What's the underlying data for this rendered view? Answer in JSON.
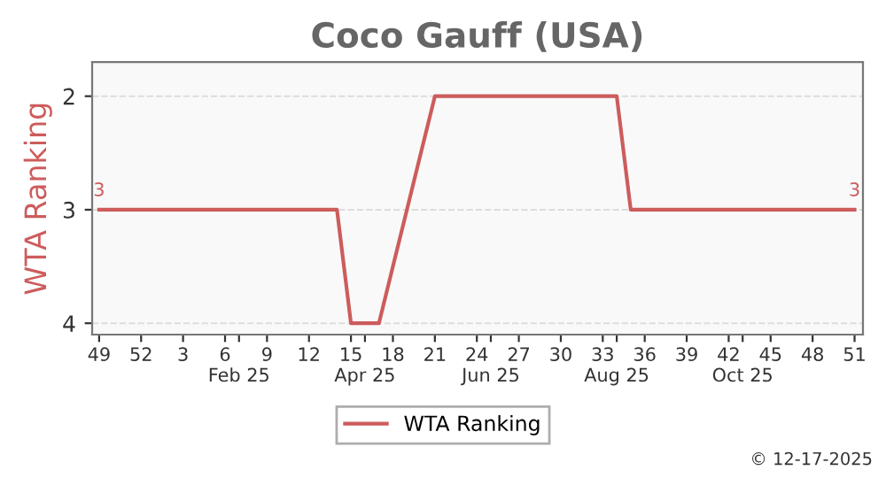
{
  "chart_data": {
    "type": "line",
    "title": "Coco Gauff (USA)",
    "ylabel": "WTA Ranking",
    "categories": [
      "49",
      null,
      null,
      "52",
      null,
      null,
      "3",
      null,
      null,
      "6",
      "\nFeb 25",
      null,
      "9",
      null,
      null,
      "12",
      null,
      null,
      "15",
      "\nApr 25",
      null,
      "18",
      null,
      null,
      "21",
      null,
      null,
      "24",
      "\nJun 25",
      null,
      "27",
      null,
      null,
      "30",
      null,
      null,
      "33",
      "\nAug 25",
      null,
      "36",
      null,
      null,
      "39",
      null,
      null,
      "42",
      "\nOct 25",
      null,
      "45",
      null,
      null,
      "48",
      null,
      null,
      "51"
    ],
    "series": [
      {
        "name": "WTA Ranking",
        "color": "#cd5c5c",
        "values": [
          3,
          3,
          3,
          3,
          3,
          3,
          3,
          3,
          3,
          3,
          3,
          3,
          3,
          3,
          3,
          3,
          3,
          3,
          4,
          4,
          4,
          3.5,
          3,
          2.5,
          2,
          2,
          2,
          2,
          2,
          2,
          2,
          2,
          2,
          2,
          2,
          2,
          2,
          2,
          3,
          3,
          3,
          3,
          3,
          3,
          3,
          3,
          3,
          3,
          3,
          3,
          3,
          3,
          3,
          3,
          3
        ]
      }
    ],
    "annotations": [
      {
        "text": "3",
        "x": "49",
        "y": 3
      },
      {
        "text": "3",
        "x": "51",
        "y": 3
      },
      "© 12-17-2025"
    ],
    "ylim": [
      4.1,
      1.7
    ],
    "yticks": [
      2,
      3,
      4
    ],
    "grid": "y",
    "legend": "bottom",
    "marker": "none",
    "line_style": "solid"
  }
}
